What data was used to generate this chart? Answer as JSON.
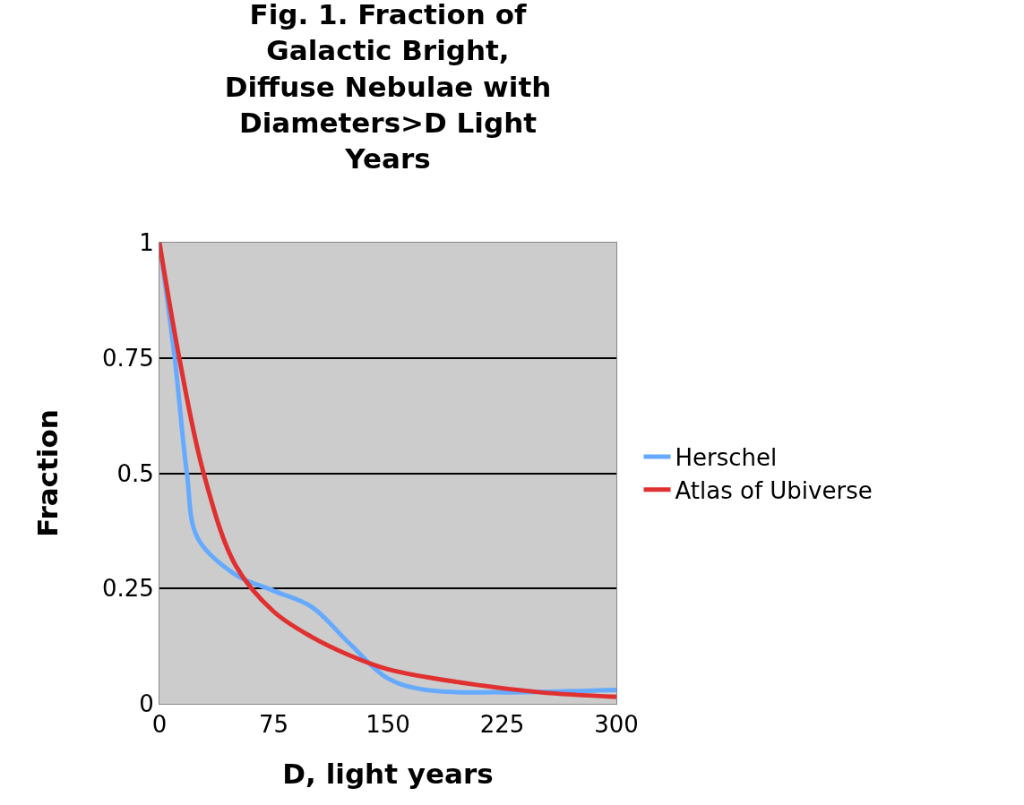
{
  "chart_data": {
    "type": "line",
    "title": "Fig. 1. Fraction of Galactic Bright, Diffuse Nebulae with Diameters>D Light Years",
    "xlabel": "D, light years",
    "ylabel": "Fraction",
    "xlim": [
      0,
      300
    ],
    "xticks": [
      0,
      75,
      150,
      225,
      300
    ],
    "ylim": [
      0,
      1
    ],
    "yticks": [
      0,
      0.25,
      0.5,
      0.75,
      1
    ],
    "grid": "y",
    "legend": "right",
    "marker": "none",
    "line_style": "solid",
    "series": [
      {
        "name": "Herschel",
        "color": "#66aaff",
        "x": [
          0,
          10,
          18,
          25,
          50,
          75,
          100,
          125,
          150,
          175,
          225,
          300
        ],
        "values": [
          1,
          0.75,
          0.5,
          0.36,
          0.28,
          0.245,
          0.21,
          0.13,
          0.055,
          0.03,
          0.025,
          0.03
        ]
      },
      {
        "name": "Atlas of Ubiverse",
        "color": "#e03030",
        "x": [
          0,
          13,
          29,
          50,
          75,
          100,
          125,
          150,
          200,
          250,
          300
        ],
        "values": [
          1,
          0.75,
          0.5,
          0.3,
          0.2,
          0.145,
          0.105,
          0.075,
          0.045,
          0.025,
          0.015
        ]
      }
    ]
  }
}
